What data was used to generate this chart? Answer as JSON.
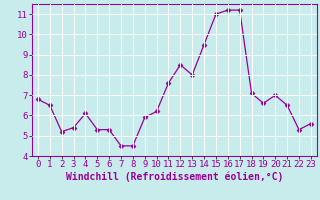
{
  "x": [
    0,
    1,
    2,
    3,
    4,
    5,
    6,
    7,
    8,
    9,
    10,
    11,
    12,
    13,
    14,
    15,
    16,
    17,
    18,
    19,
    20,
    21,
    22,
    23
  ],
  "y": [
    6.8,
    6.5,
    5.2,
    5.4,
    6.1,
    5.3,
    5.3,
    4.5,
    4.5,
    5.9,
    6.2,
    7.6,
    8.5,
    8.0,
    9.5,
    11.0,
    11.2,
    11.2,
    7.1,
    6.6,
    7.0,
    6.5,
    5.3,
    5.6
  ],
  "line_color": "#990099",
  "marker": "D",
  "marker_size": 2.5,
  "bg_color": "#c8ecec",
  "grid_color": "#ffffff",
  "xlabel": "Windchill (Refroidissement éolien,°C)",
  "xlim": [
    -0.5,
    23.5
  ],
  "ylim": [
    4,
    11.5
  ],
  "yticks": [
    4,
    5,
    6,
    7,
    8,
    9,
    10,
    11
  ],
  "xticks": [
    0,
    1,
    2,
    3,
    4,
    5,
    6,
    7,
    8,
    9,
    10,
    11,
    12,
    13,
    14,
    15,
    16,
    17,
    18,
    19,
    20,
    21,
    22,
    23
  ],
  "tick_label_color": "#990099",
  "spine_color": "#990099",
  "xlabel_color": "#990099",
  "xlabel_fontsize": 7,
  "tick_fontsize": 6.5
}
